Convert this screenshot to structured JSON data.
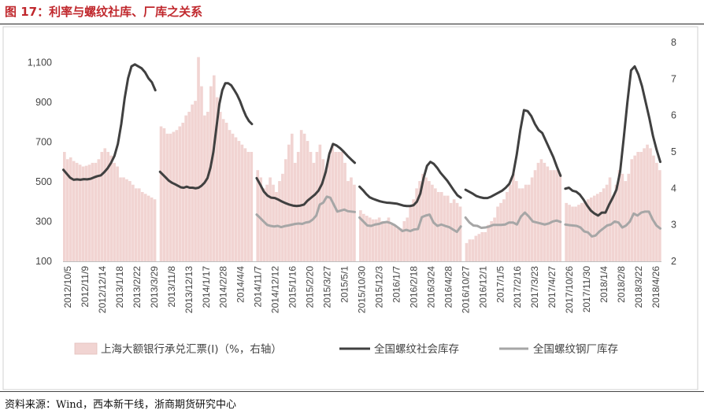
{
  "figure": {
    "title": "图 17：利率与螺纹社库、厂库之关系",
    "source": "资料来源：Wind，西本新干线，浙商期货研究中心"
  },
  "colors": {
    "title": "#c0282d",
    "bars": "#f1d4d2",
    "social_line": "#404040",
    "factory_line": "#a6a6a6"
  },
  "chart_data": {
    "type": "bar+line",
    "title": "",
    "xlabel": "",
    "ylabel": "",
    "left_axis": {
      "ylim": [
        100,
        1200
      ],
      "ticks": [
        "100",
        "300",
        "500",
        "700",
        "900",
        "1,100"
      ]
    },
    "right_axis": {
      "ylim": [
        2,
        8
      ],
      "ticks": [
        "2",
        "3",
        "4",
        "5",
        "6",
        "7",
        "8"
      ]
    },
    "grid": false,
    "legend_position": "bottom",
    "x_tick_labels": [
      "2012/10/5",
      "2012/11/9",
      "2012/12/14",
      "2013/1/18",
      "2013/2/22",
      "2013/3/29",
      "2013/11/8",
      "2013/12/13",
      "2014/1/17",
      "2014/2/28",
      "2014/4/4",
      "2014/11/7",
      "2014/12/12",
      "2015/1/16",
      "2015/2/20",
      "2015/3/27",
      "2015/5/1",
      "2015/10/30",
      "2015/12/3",
      "2016/1/7",
      "2016/2/18",
      "2016/3/24",
      "2016/4/28",
      "2016/10/27",
      "2016/12/1",
      "2017/1/5",
      "2017/2/16",
      "2017/3/23",
      "2017/4/27",
      "2017/10/26",
      "2017/11/30",
      "2018/1/4",
      "2018/2/8",
      "2018/3/22",
      "2018/4/26"
    ],
    "segments": [
      {
        "bars_right_axis": [
          5.0,
          4.8,
          4.85,
          4.75,
          4.7,
          4.65,
          4.6,
          4.62,
          4.65,
          4.7,
          4.7,
          4.8,
          5.0,
          5.1,
          5.0,
          4.9,
          4.7,
          4.6,
          4.3,
          4.3,
          4.25,
          4.2,
          4.1,
          4.0,
          4.0,
          3.9,
          3.85,
          3.8,
          3.75,
          3.7
        ],
        "social_inventory": [
          560,
          540,
          520,
          510,
          512,
          510,
          513,
          512,
          515,
          522,
          528,
          532,
          548,
          568,
          595,
          630,
          690,
          790,
          920,
          1020,
          1080,
          1090,
          1080,
          1070,
          1050,
          1020,
          1000,
          960
        ],
        "factory_inventory": []
      },
      {
        "bars_right_axis": [
          5.7,
          5.65,
          5.5,
          5.5,
          5.55,
          5.6,
          5.7,
          5.8,
          6.0,
          6.1,
          6.3,
          6.4,
          7.6,
          6.8,
          6.0,
          6.1,
          6.8,
          7.1,
          6.5,
          6.1,
          5.9,
          5.8,
          5.6,
          5.5,
          5.4,
          5.3,
          5.2,
          5.1,
          5.0,
          5.0
        ],
        "social_inventory": [
          550,
          535,
          520,
          505,
          495,
          488,
          480,
          472,
          470,
          475,
          470,
          470,
          467,
          470,
          480,
          495,
          518,
          570,
          650,
          770,
          890,
          960,
          995,
          995,
          985,
          962,
          937,
          905,
          865,
          830,
          805,
          790
        ],
        "factory_inventory": []
      },
      {
        "bars_right_axis": [
          4.5,
          4.3,
          4.0,
          4.1,
          4.3,
          4.1,
          3.9,
          4.2,
          4.4,
          4.8,
          5.2,
          5.5,
          4.7,
          5.0,
          5.6,
          5.5,
          5.3,
          5.0,
          4.7,
          5.0,
          5.2,
          4.8,
          4.5,
          4.9,
          5.2,
          5.0,
          5.0,
          5.0,
          4.7,
          4.2,
          4.3,
          4.1
        ],
        "social_inventory": [
          518,
          485,
          450,
          430,
          420,
          418,
          410,
          400,
          392,
          385,
          380,
          378,
          380,
          385,
          405,
          420,
          435,
          455,
          490,
          550,
          640,
          690,
          682,
          668,
          650,
          630,
          612,
          595
        ],
        "factory_inventory": [
          335,
          318,
          300,
          283,
          278,
          275,
          278,
          272,
          277,
          280,
          284,
          288,
          290,
          288,
          295,
          298,
          310,
          330,
          385,
          395,
          425,
          420,
          385,
          350,
          355,
          360,
          352,
          350,
          348
        ]
      },
      {
        "bars_right_axis": [
          3.4,
          3.3,
          3.25,
          3.2,
          3.15,
          3.15,
          3.2,
          3.1,
          3.1,
          3.2,
          3.0,
          3.0,
          2.9,
          2.9,
          3.1,
          3.2,
          3.5,
          3.7,
          4.0,
          4.2,
          4.4,
          4.3,
          4.2,
          4.1,
          4.0,
          3.9,
          3.9,
          3.8,
          3.8,
          3.6,
          3.7,
          3.6,
          3.5
        ],
        "social_inventory": [
          475,
          458,
          438,
          422,
          414,
          408,
          402,
          398,
          395,
          394,
          392,
          390,
          385,
          380,
          378,
          378,
          382,
          400,
          440,
          520,
          580,
          600,
          590,
          570,
          545,
          525,
          505,
          480,
          455,
          432,
          420
        ],
        "factory_inventory": [
          320,
          300,
          280,
          278,
          285,
          288,
          295,
          298,
          292,
          282,
          268,
          252,
          258,
          252,
          260,
          262,
          322,
          330,
          335,
          295,
          278,
          285,
          278,
          272,
          260,
          248,
          275
        ]
      },
      {
        "bars_right_axis": [
          2.5,
          2.6,
          2.6,
          2.7,
          2.75,
          2.8,
          2.8,
          3.0,
          3.1,
          3.2,
          3.5,
          3.6,
          3.7,
          3.9,
          4.1,
          4.4,
          4.2,
          4.0,
          4.0,
          4.1,
          4.1,
          4.3,
          4.5,
          4.7,
          4.8,
          4.7,
          4.6,
          4.5,
          4.5,
          4.5,
          4.4
        ],
        "social_inventory": [
          460,
          450,
          440,
          428,
          422,
          418,
          418,
          425,
          435,
          445,
          455,
          470,
          490,
          535,
          635,
          760,
          860,
          855,
          830,
          790,
          760,
          745,
          705,
          665,
          625,
          575,
          530
        ],
        "factory_inventory": [
          320,
          295,
          280,
          278,
          268,
          270,
          275,
          283,
          283,
          283,
          285,
          295,
          295,
          285,
          325,
          345,
          325,
          300,
          295,
          290,
          285,
          290,
          300,
          305,
          298
        ]
      },
      {
        "bars_right_axis": [
          3.6,
          3.55,
          3.5,
          3.5,
          3.55,
          3.6,
          3.65,
          3.7,
          3.75,
          3.8,
          3.85,
          3.9,
          4.0,
          4.1,
          4.3,
          3.8,
          4.1,
          4.5,
          4.4,
          4.2,
          4.4,
          4.8,
          4.9,
          5.0,
          5.0,
          5.1,
          5.2,
          5.1,
          4.9,
          4.7,
          4.5
        ],
        "social_inventory": [
          465,
          470,
          455,
          450,
          435,
          410,
          380,
          355,
          340,
          330,
          345,
          345,
          385,
          420,
          460,
          550,
          720,
          900,
          1060,
          1080,
          1040,
          980,
          900,
          820,
          730,
          660,
          600
        ],
        "factory_inventory": [
          285,
          282,
          280,
          278,
          270,
          250,
          245,
          225,
          230,
          250,
          265,
          280,
          285,
          300,
          295,
          270,
          280,
          300,
          340,
          330,
          345,
          350,
          350,
          310,
          280,
          265
        ]
      }
    ],
    "series": [
      {
        "name": "上海大额银行承兑汇票(Ⅰ)（%，右轴）",
        "type": "bar",
        "axis": "right",
        "color": "#f1d4d2"
      },
      {
        "name": "全国螺纹社会库存",
        "type": "line",
        "axis": "left",
        "color": "#404040"
      },
      {
        "name": "全国螺纹钢厂库存",
        "type": "line",
        "axis": "left",
        "color": "#a6a6a6"
      }
    ]
  }
}
